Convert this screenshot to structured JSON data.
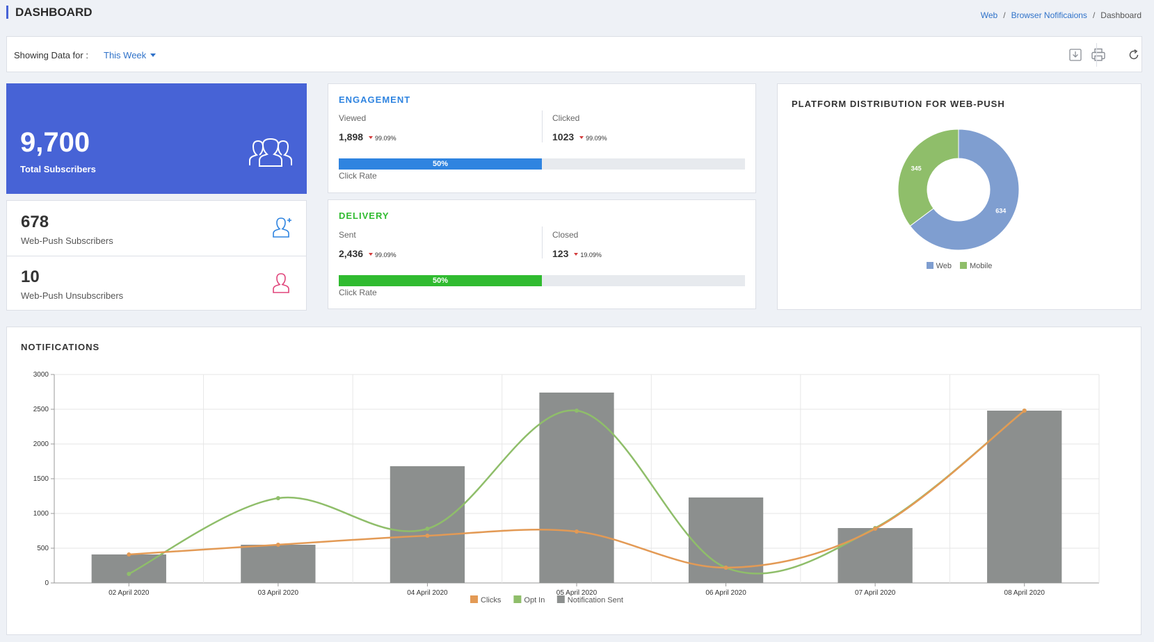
{
  "header": {
    "title": "DASHBOARD",
    "breadcrumb": [
      "Web",
      "Browser Nofificaions",
      "Dashboard"
    ]
  },
  "filter": {
    "label": "Showing Data for :",
    "value": "This Week"
  },
  "toolbar": {
    "icons": [
      "download-icon",
      "print-icon",
      "refresh-icon"
    ]
  },
  "totals": {
    "total_value": "9,700",
    "total_label": "Total Subscribers",
    "webpush_value": "678",
    "webpush_label": "Web-Push Subscribers",
    "unsub_value": "10",
    "unsub_label": "Web-Push Unsubscribers"
  },
  "engagement": {
    "title": "ENGAGEMENT",
    "left_label": "Viewed",
    "left_value": "1,898",
    "left_delta": "99.09%",
    "right_label": "Clicked",
    "right_value": "1023",
    "right_delta": "99.09%",
    "progress_text": "50%",
    "progress_value": 0.5,
    "rate_label": "Click Rate"
  },
  "delivery": {
    "title": "DELIVERY",
    "left_label": "Sent",
    "left_value": "2,436",
    "left_delta": "99.09%",
    "right_label": "Closed",
    "right_value": "123",
    "right_delta": "19.09%",
    "progress_text": "50%",
    "progress_value": 0.5,
    "rate_label": "Click Rate"
  },
  "platform": {
    "title": "PLATFORM DISTRIBUTION FOR WEB-PUSH"
  },
  "notifications": {
    "title": "NOTIFICATIONS"
  },
  "colors": {
    "primary": "#4763d6",
    "link": "#2f72c9",
    "engagement_accent": "#2f84e0",
    "delivery_accent": "#30bb30",
    "web": "#7f9ed0",
    "mobile": "#8fbe6a",
    "clicks": "#e39a55",
    "opt_in": "#8fbe6a",
    "sent": "#8c8f8e",
    "down": "#d23a3a"
  },
  "chart_data": [
    {
      "type": "pie",
      "donut": true,
      "title": "PLATFORM DISTRIBUTION FOR WEB-PUSH",
      "labels": [
        "Web",
        "Mobile"
      ],
      "values": [
        634,
        345
      ],
      "colors": [
        "#7f9ed0",
        "#8fbe6a"
      ],
      "legend": "bottom"
    },
    {
      "type": "bar",
      "title": "NOTIFICATIONS",
      "categories": [
        "02 April 2020",
        "03 April 2020",
        "04 April 2020",
        "05 April 2020",
        "06 April 2020",
        "07 April 2020",
        "08 April 2020"
      ],
      "series": [
        {
          "name": "Clicks",
          "type": "line",
          "color": "#e39a55",
          "values": [
            410,
            550,
            680,
            740,
            220,
            780,
            2480
          ]
        },
        {
          "name": "Opt In",
          "type": "line",
          "color": "#8fbe6a",
          "values": [
            130,
            1220,
            780,
            2480,
            220,
            790,
            2480
          ]
        },
        {
          "name": "Notification Sent",
          "type": "bar",
          "color": "#8c8f8e",
          "values": [
            410,
            550,
            1680,
            2740,
            1230,
            790,
            2480
          ]
        }
      ],
      "ylim": [
        0,
        3000
      ],
      "yticks": [
        0,
        500,
        1000,
        1500,
        2000,
        2500,
        3000
      ],
      "grid": true,
      "legend": "bottom"
    }
  ]
}
